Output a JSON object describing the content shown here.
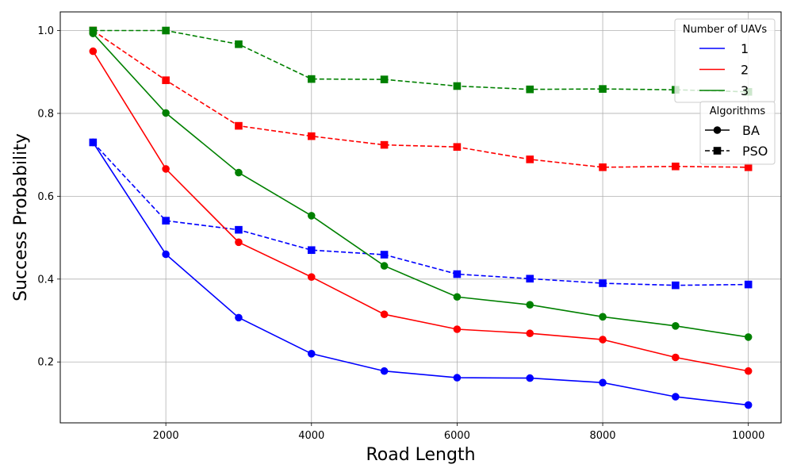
{
  "chart_data": {
    "type": "line",
    "title": "",
    "xlabel": "Road Length",
    "ylabel": "Success Probability",
    "xlim": [
      550,
      10450
    ],
    "ylim": [
      0.053,
      1.045
    ],
    "x_ticks": [
      2000,
      4000,
      6000,
      8000,
      10000
    ],
    "x_tick_labels": [
      "2000",
      "4000",
      "6000",
      "8000",
      "10000"
    ],
    "y_ticks": [
      0.2,
      0.4,
      0.6,
      0.8,
      1.0
    ],
    "y_tick_labels": [
      "0.2",
      "0.4",
      "0.6",
      "0.8",
      "1.0"
    ],
    "grid": true,
    "x": [
      1000,
      2000,
      3000,
      4000,
      5000,
      6000,
      7000,
      8000,
      9000,
      10000
    ],
    "series": [
      {
        "uavs": "1",
        "algorithm": "BA",
        "color": "#0000ff",
        "linestyle": "solid",
        "marker": "circle",
        "values": [
          0.73,
          0.46,
          0.307,
          0.22,
          0.178,
          0.162,
          0.161,
          0.15,
          0.116,
          0.096
        ]
      },
      {
        "uavs": "1",
        "algorithm": "PSO",
        "color": "#0000ff",
        "linestyle": "dashed",
        "marker": "square",
        "values": [
          0.73,
          0.541,
          0.519,
          0.47,
          0.459,
          0.412,
          0.401,
          0.39,
          0.385,
          0.387
        ]
      },
      {
        "uavs": "2",
        "algorithm": "BA",
        "color": "#ff0000",
        "linestyle": "solid",
        "marker": "circle",
        "values": [
          0.95,
          0.666,
          0.489,
          0.405,
          0.315,
          0.279,
          0.269,
          0.254,
          0.211,
          0.178
        ]
      },
      {
        "uavs": "2",
        "algorithm": "PSO",
        "color": "#ff0000",
        "linestyle": "dashed",
        "marker": "square",
        "values": [
          1.0,
          0.88,
          0.77,
          0.745,
          0.724,
          0.719,
          0.689,
          0.67,
          0.672,
          0.67
        ]
      },
      {
        "uavs": "3",
        "algorithm": "BA",
        "color": "#008000",
        "linestyle": "solid",
        "marker": "circle",
        "values": [
          0.993,
          0.801,
          0.657,
          0.553,
          0.432,
          0.357,
          0.338,
          0.309,
          0.287,
          0.26
        ]
      },
      {
        "uavs": "3",
        "algorithm": "PSO",
        "color": "#008000",
        "linestyle": "dashed",
        "marker": "square",
        "values": [
          1.0,
          1.0,
          0.967,
          0.883,
          0.882,
          0.866,
          0.858,
          0.859,
          0.857,
          0.852
        ]
      }
    ],
    "legend_uavs": {
      "title": "Number of UAVs",
      "placement": "top-right",
      "entries": [
        {
          "label": "1",
          "color": "#0000ff"
        },
        {
          "label": "2",
          "color": "#ff0000"
        },
        {
          "label": "3",
          "color": "#008000"
        }
      ]
    },
    "legend_algorithms": {
      "title": "Algorithms",
      "placement": "right",
      "entries": [
        {
          "label": "BA",
          "linestyle": "solid",
          "marker": "circle"
        },
        {
          "label": "PSO",
          "linestyle": "dashed",
          "marker": "square"
        }
      ]
    }
  }
}
